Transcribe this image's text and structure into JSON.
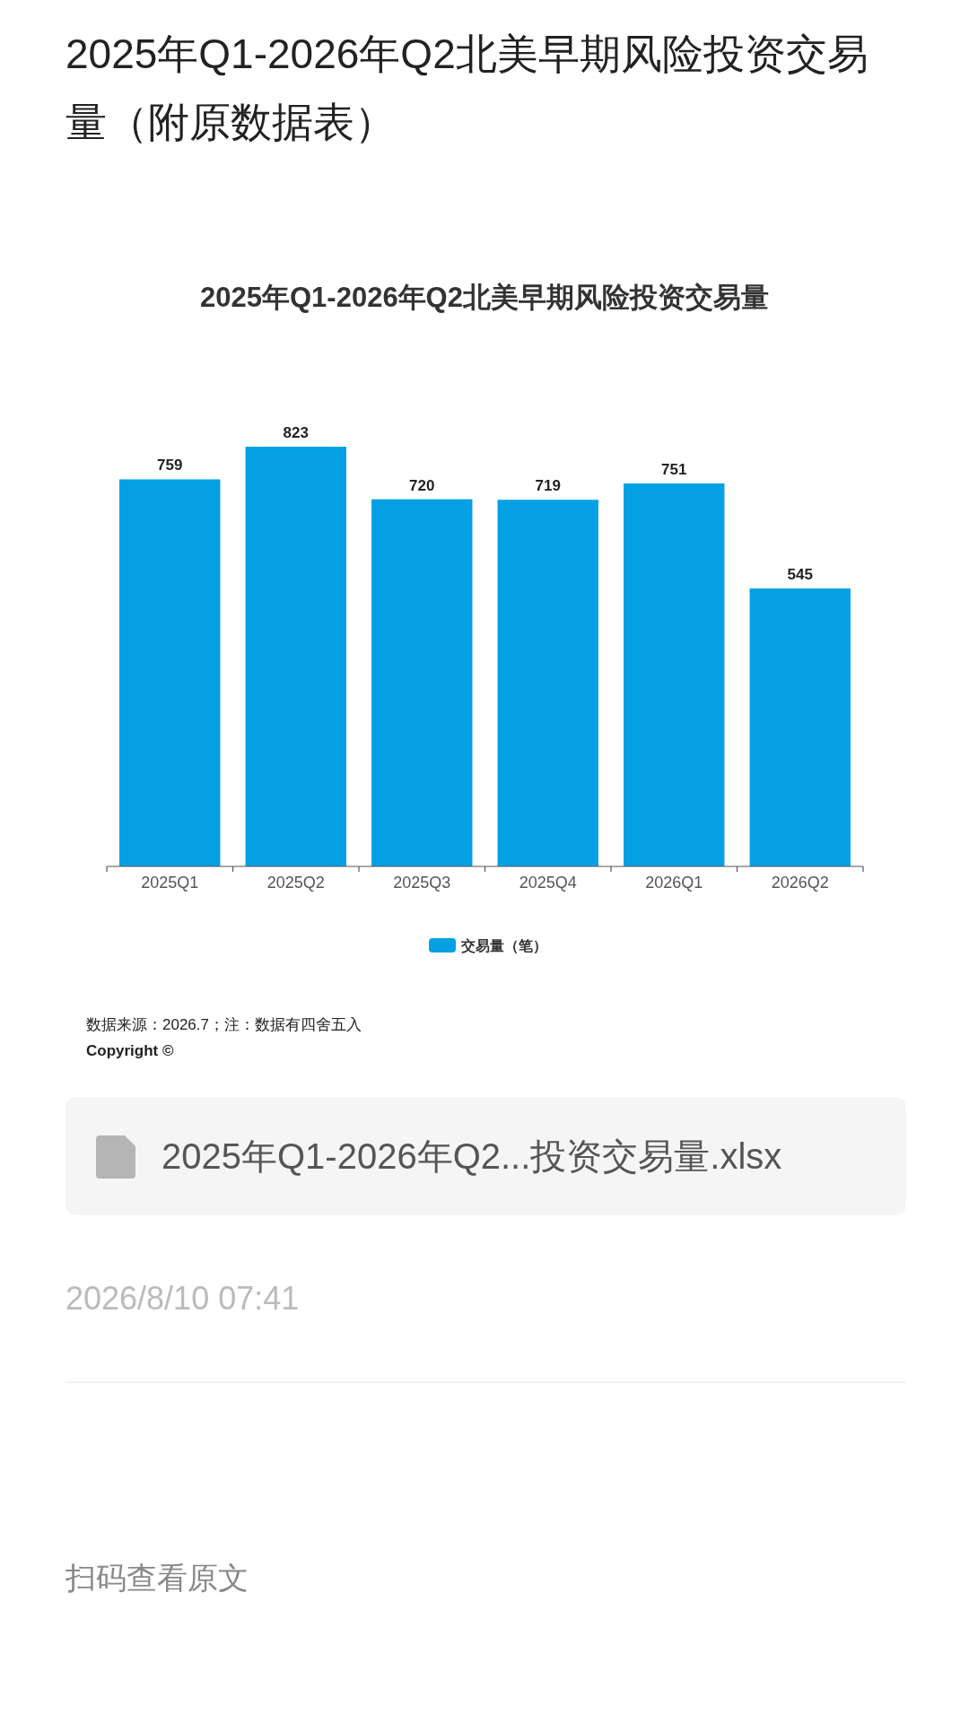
{
  "chart_data": {
    "type": "bar",
    "title": "2025年Q1-2026年Q2北美早期风险投资交易量（附原数据表）",
    "subtitle": "2025年Q1-2026年Q2北美早期风险投资交易量",
    "categories": [
      "2025Q1",
      "2025Q2",
      "2025Q3",
      "2025Q4",
      "2026Q1",
      "2026Q2"
    ],
    "series": [
      {
        "name": "交易量（笔）",
        "color": "#05a0e4",
        "values": [
          759,
          823,
          720,
          719,
          751,
          545
        ]
      }
    ],
    "data_labels": true,
    "legend": "bottom",
    "annotations": [
      "数据来源：2026.7；注：数据有四舍五入",
      "Copyright ©",
      "2025年Q1-2026年Q2...投资交易量.xlsx",
      "2026/8/10 07:41",
      "扫码查看原文"
    ]
  }
}
